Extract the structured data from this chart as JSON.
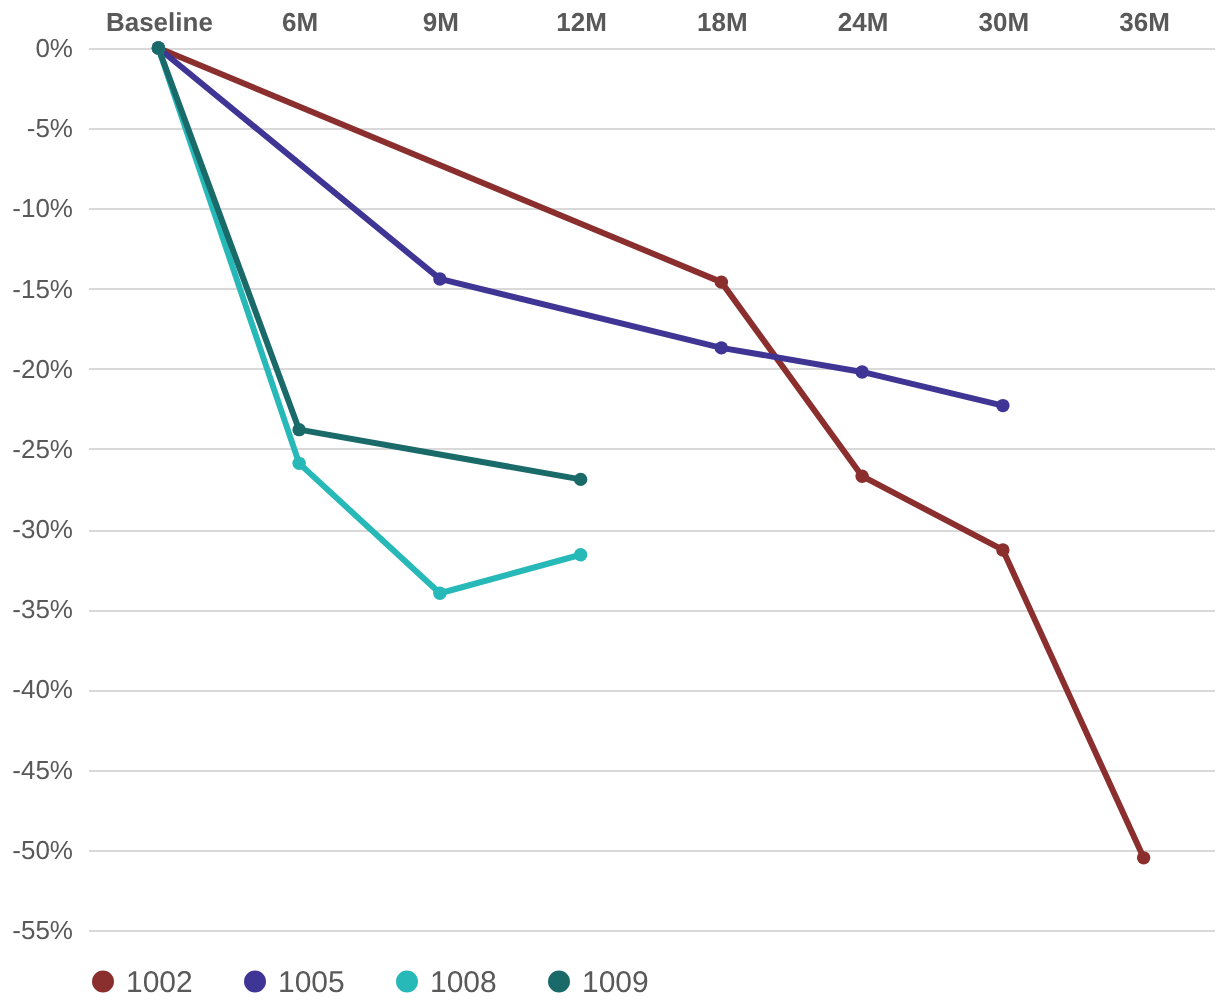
{
  "chart_data": {
    "type": "line",
    "categories": [
      "Baseline",
      "6M",
      "9M",
      "12M",
      "18M",
      "24M",
      "30M",
      "36M"
    ],
    "series": [
      {
        "name": "1002",
        "color": "#8b2e2e",
        "values": [
          0,
          null,
          null,
          null,
          -14.6,
          -26.7,
          -31.3,
          -50.5
        ]
      },
      {
        "name": "1005",
        "color": "#3f3595",
        "values": [
          0,
          null,
          -14.4,
          null,
          -18.7,
          -20.2,
          -22.3,
          null
        ]
      },
      {
        "name": "1008",
        "color": "#27b8b8",
        "values": [
          0,
          -25.9,
          -34.0,
          -31.6,
          null,
          null,
          null,
          null
        ]
      },
      {
        "name": "1009",
        "color": "#1a6a6a",
        "values": [
          0,
          -23.8,
          null,
          -26.9,
          null,
          null,
          null,
          null
        ]
      }
    ],
    "ylim": [
      -55,
      0
    ],
    "yticks": [
      {
        "value": 0,
        "label": "0%"
      },
      {
        "value": -5,
        "label": "-5%"
      },
      {
        "value": -10,
        "label": "-10%"
      },
      {
        "value": -15,
        "label": "-15%"
      },
      {
        "value": -20,
        "label": "-20%"
      },
      {
        "value": -25,
        "label": "-25%"
      },
      {
        "value": -30,
        "label": "-30%"
      },
      {
        "value": -35,
        "label": "-35%"
      },
      {
        "value": -40,
        "label": "-40%"
      },
      {
        "value": -45,
        "label": "-45%"
      },
      {
        "value": -50,
        "label": "-50%"
      },
      {
        "value": -55,
        "label": "-55%"
      }
    ],
    "grid": "y",
    "legend": "bottom",
    "marker": "circle",
    "line_style": "solid"
  }
}
